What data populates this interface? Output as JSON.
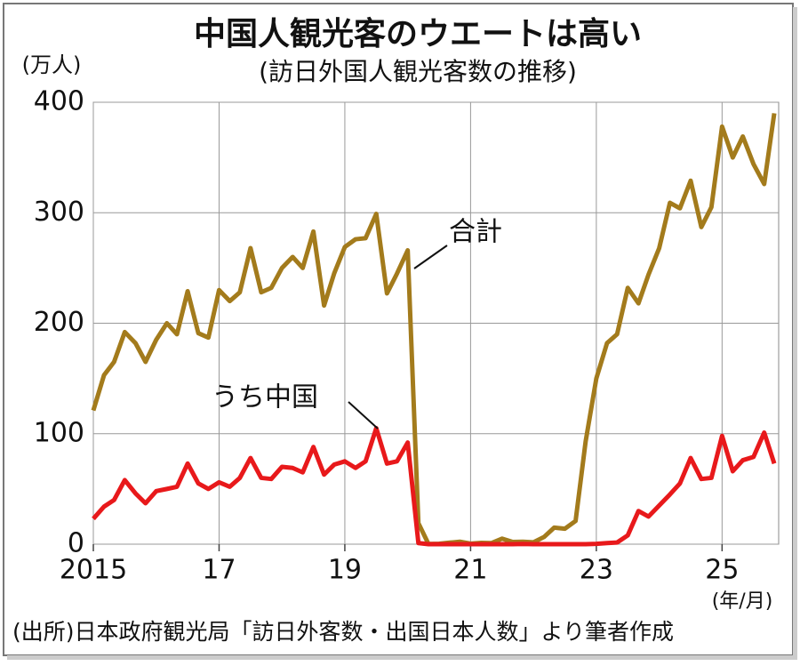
{
  "chart_data": {
    "type": "line",
    "title": "中国人観光客のウエートは高い",
    "subtitle": "(訪日外国人観光客数の推移)",
    "y_unit": "(万人)",
    "x_unit": "(年/月)",
    "source": "(出所)日本政府観光局「訪日外客数・出国日本人数」より筆者作成",
    "x": [
      2015,
      2015.17,
      2015.33,
      2015.5,
      2015.67,
      2015.83,
      2016,
      2016.17,
      2016.33,
      2016.5,
      2016.67,
      2016.83,
      2017,
      2017.17,
      2017.33,
      2017.5,
      2017.67,
      2017.83,
      2018,
      2018.17,
      2018.33,
      2018.5,
      2018.67,
      2018.83,
      2019,
      2019.17,
      2019.33,
      2019.5,
      2019.67,
      2019.83,
      2020,
      2020.17,
      2020.33,
      2020.5,
      2020.67,
      2020.83,
      2021,
      2021.17,
      2021.33,
      2021.5,
      2021.67,
      2021.83,
      2022,
      2022.17,
      2022.33,
      2022.5,
      2022.67,
      2022.83,
      2023,
      2023.17,
      2023.33,
      2023.5,
      2023.67,
      2023.83,
      2024,
      2024.17,
      2024.33,
      2024.5,
      2024.67,
      2024.83,
      2025,
      2025.17,
      2025.33,
      2025.5,
      2025.67,
      2025.83
    ],
    "series": [
      {
        "name": "合計",
        "color": "#a37b1c",
        "values": [
          121,
          153,
          165,
          192,
          182,
          165,
          185,
          200,
          190,
          229,
          191,
          187,
          230,
          220,
          228,
          268,
          228,
          232,
          250,
          260,
          250,
          283,
          216,
          245,
          269,
          276,
          277,
          299,
          227,
          245,
          266,
          19,
          0.2,
          0.4,
          1.4,
          2.2,
          0.5,
          1.2,
          1,
          5,
          2,
          2.2,
          1.7,
          6.6,
          15,
          14,
          21,
          93,
          150,
          182,
          190,
          232,
          218,
          244,
          268,
          309,
          304,
          329,
          287,
          305,
          378,
          350,
          369,
          344,
          326,
          390
        ]
      },
      {
        "name": "うち中国",
        "color": "#e8191b",
        "values": [
          23,
          34,
          40,
          58,
          46,
          37,
          48,
          50,
          52,
          73,
          55,
          50,
          56,
          52,
          60,
          78,
          60,
          59,
          70,
          69,
          65,
          88,
          63,
          72,
          75,
          69,
          75,
          105,
          73,
          75,
          92,
          1,
          0,
          0,
          0,
          0,
          0,
          0,
          0,
          0,
          0,
          0.2,
          0,
          0,
          0,
          0,
          0,
          0,
          0.3,
          1,
          1.5,
          8,
          30,
          25,
          35,
          45,
          55,
          78,
          59,
          60,
          98,
          66,
          76,
          79,
          101,
          73
        ]
      }
    ],
    "xlim": [
      2015,
      2025.9
    ],
    "xticks": [
      {
        "value": 2015,
        "label": "2015"
      },
      {
        "value": 2017,
        "label": "17"
      },
      {
        "value": 2019,
        "label": "19"
      },
      {
        "value": 2021,
        "label": "21"
      },
      {
        "value": 2023,
        "label": "23"
      },
      {
        "value": 2025,
        "label": "25"
      }
    ],
    "ylim": [
      0,
      400
    ],
    "yticks": [
      0,
      100,
      200,
      300,
      400
    ],
    "grid": true
  }
}
